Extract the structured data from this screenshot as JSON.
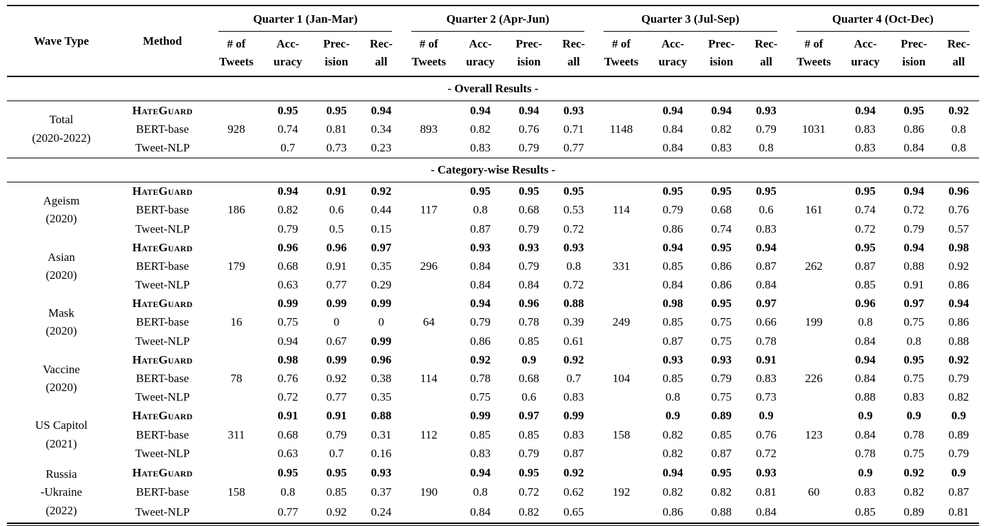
{
  "colors": {
    "background": "#ffffff",
    "text": "#000000",
    "rule": "#000000"
  },
  "table": {
    "header": {
      "wave_type": "Wave Type",
      "method": "Method",
      "quarters": [
        {
          "label": "Quarter 1 (Jan-Mar)"
        },
        {
          "label": "Quarter 2 (Apr-Jun)"
        },
        {
          "label": "Quarter 3 (Jul-Sep)"
        },
        {
          "label": "Quarter 4 (Oct-Dec)"
        }
      ],
      "metrics": [
        {
          "line1": "# of",
          "line2": "Tweets"
        },
        {
          "line1": "Acc-",
          "line2": "uracy"
        },
        {
          "line1": "Prec-",
          "line2": "ision"
        },
        {
          "line1": "Rec-",
          "line2": "all"
        }
      ]
    },
    "sections": [
      {
        "title": "- Overall Results -",
        "groups": [
          {
            "wave": [
              "Total",
              "(2020-2022)"
            ],
            "rows": [
              {
                "method": "HateGuard",
                "hateguard": true,
                "bold": true,
                "q": [
                  [
                    "",
                    "0.95",
                    "0.95",
                    "0.94"
                  ],
                  [
                    "",
                    "0.94",
                    "0.94",
                    "0.93"
                  ],
                  [
                    "",
                    "0.94",
                    "0.94",
                    "0.93"
                  ],
                  [
                    "",
                    "0.94",
                    "0.95",
                    "0.92"
                  ]
                ]
              },
              {
                "method": "BERT-base",
                "hateguard": false,
                "bold": false,
                "q": [
                  [
                    "928",
                    "0.74",
                    "0.81",
                    "0.34"
                  ],
                  [
                    "893",
                    "0.82",
                    "0.76",
                    "0.71"
                  ],
                  [
                    "1148",
                    "0.84",
                    "0.82",
                    "0.79"
                  ],
                  [
                    "1031",
                    "0.83",
                    "0.86",
                    "0.8"
                  ]
                ]
              },
              {
                "method": "Tweet-NLP",
                "hateguard": false,
                "bold": false,
                "q": [
                  [
                    "",
                    "0.7",
                    "0.73",
                    "0.23"
                  ],
                  [
                    "",
                    "0.83",
                    "0.79",
                    "0.77"
                  ],
                  [
                    "",
                    "0.84",
                    "0.83",
                    "0.8"
                  ],
                  [
                    "",
                    "0.83",
                    "0.84",
                    "0.8"
                  ]
                ]
              }
            ]
          }
        ]
      },
      {
        "title": "- Category-wise Results -",
        "groups": [
          {
            "wave": [
              "Ageism",
              "(2020)"
            ],
            "rows": [
              {
                "method": "HateGuard",
                "hateguard": true,
                "bold": true,
                "q": [
                  [
                    "",
                    "0.94",
                    "0.91",
                    "0.92"
                  ],
                  [
                    "",
                    "0.95",
                    "0.95",
                    "0.95"
                  ],
                  [
                    "",
                    "0.95",
                    "0.95",
                    "0.95"
                  ],
                  [
                    "",
                    "0.95",
                    "0.94",
                    "0.96"
                  ]
                ]
              },
              {
                "method": "BERT-base",
                "hateguard": false,
                "bold": false,
                "q": [
                  [
                    "186",
                    "0.82",
                    "0.6",
                    "0.44"
                  ],
                  [
                    "117",
                    "0.8",
                    "0.68",
                    "0.53"
                  ],
                  [
                    "114",
                    "0.79",
                    "0.68",
                    "0.6"
                  ],
                  [
                    "161",
                    "0.74",
                    "0.72",
                    "0.76"
                  ]
                ]
              },
              {
                "method": "Tweet-NLP",
                "hateguard": false,
                "bold": false,
                "q": [
                  [
                    "",
                    "0.79",
                    "0.5",
                    "0.15"
                  ],
                  [
                    "",
                    "0.87",
                    "0.79",
                    "0.72"
                  ],
                  [
                    "",
                    "0.86",
                    "0.74",
                    "0.83"
                  ],
                  [
                    "",
                    "0.72",
                    "0.79",
                    "0.57"
                  ]
                ]
              }
            ]
          },
          {
            "wave": [
              "Asian",
              "(2020)"
            ],
            "rows": [
              {
                "method": "HateGuard",
                "hateguard": true,
                "bold": true,
                "q": [
                  [
                    "",
                    "0.96",
                    "0.96",
                    "0.97"
                  ],
                  [
                    "",
                    "0.93",
                    "0.93",
                    "0.93"
                  ],
                  [
                    "",
                    "0.94",
                    "0.95",
                    "0.94"
                  ],
                  [
                    "",
                    "0.95",
                    "0.94",
                    "0.98"
                  ]
                ]
              },
              {
                "method": "BERT-base",
                "hateguard": false,
                "bold": false,
                "q": [
                  [
                    "179",
                    "0.68",
                    "0.91",
                    "0.35"
                  ],
                  [
                    "296",
                    "0.84",
                    "0.79",
                    "0.8"
                  ],
                  [
                    "331",
                    "0.85",
                    "0.86",
                    "0.87"
                  ],
                  [
                    "262",
                    "0.87",
                    "0.88",
                    "0.92"
                  ]
                ]
              },
              {
                "method": "Tweet-NLP",
                "hateguard": false,
                "bold": false,
                "q": [
                  [
                    "",
                    "0.63",
                    "0.77",
                    "0.29"
                  ],
                  [
                    "",
                    "0.84",
                    "0.84",
                    "0.72"
                  ],
                  [
                    "",
                    "0.84",
                    "0.86",
                    "0.84"
                  ],
                  [
                    "",
                    "0.85",
                    "0.91",
                    "0.86"
                  ]
                ]
              }
            ]
          },
          {
            "wave": [
              "Mask",
              "(2020)"
            ],
            "rows": [
              {
                "method": "HateGuard",
                "hateguard": true,
                "bold": true,
                "q": [
                  [
                    "",
                    "0.99",
                    "0.99",
                    "0.99"
                  ],
                  [
                    "",
                    "0.94",
                    "0.96",
                    "0.88"
                  ],
                  [
                    "",
                    "0.98",
                    "0.95",
                    "0.97"
                  ],
                  [
                    "",
                    "0.96",
                    "0.97",
                    "0.94"
                  ]
                ]
              },
              {
                "method": "BERT-base",
                "hateguard": false,
                "bold": false,
                "q": [
                  [
                    "16",
                    "0.75",
                    "0",
                    "0"
                  ],
                  [
                    "64",
                    "0.79",
                    "0.78",
                    "0.39"
                  ],
                  [
                    "249",
                    "0.85",
                    "0.75",
                    "0.66"
                  ],
                  [
                    "199",
                    "0.8",
                    "0.75",
                    "0.86"
                  ]
                ]
              },
              {
                "method": "Tweet-NLP",
                "hateguard": false,
                "bold": false,
                "bold_cells": [
                  [
                    0,
                    3
                  ]
                ],
                "q": [
                  [
                    "",
                    "0.94",
                    "0.67",
                    "0.99"
                  ],
                  [
                    "",
                    "0.86",
                    "0.85",
                    "0.61"
                  ],
                  [
                    "",
                    "0.87",
                    "0.75",
                    "0.78"
                  ],
                  [
                    "",
                    "0.84",
                    "0.8",
                    "0.88"
                  ]
                ]
              }
            ]
          },
          {
            "wave": [
              "Vaccine",
              "(2020)"
            ],
            "rows": [
              {
                "method": "HateGuard",
                "hateguard": true,
                "bold": true,
                "q": [
                  [
                    "",
                    "0.98",
                    "0.99",
                    "0.96"
                  ],
                  [
                    "",
                    "0.92",
                    "0.9",
                    "0.92"
                  ],
                  [
                    "",
                    "0.93",
                    "0.93",
                    "0.91"
                  ],
                  [
                    "",
                    "0.94",
                    "0.95",
                    "0.92"
                  ]
                ]
              },
              {
                "method": "BERT-base",
                "hateguard": false,
                "bold": false,
                "q": [
                  [
                    "78",
                    "0.76",
                    "0.92",
                    "0.38"
                  ],
                  [
                    "114",
                    "0.78",
                    "0.68",
                    "0.7"
                  ],
                  [
                    "104",
                    "0.85",
                    "0.79",
                    "0.83"
                  ],
                  [
                    "226",
                    "0.84",
                    "0.75",
                    "0.79"
                  ]
                ]
              },
              {
                "method": "Tweet-NLP",
                "hateguard": false,
                "bold": false,
                "q": [
                  [
                    "",
                    "0.72",
                    "0.77",
                    "0.35"
                  ],
                  [
                    "",
                    "0.75",
                    "0.6",
                    "0.83"
                  ],
                  [
                    "",
                    "0.8",
                    "0.75",
                    "0.73"
                  ],
                  [
                    "",
                    "0.88",
                    "0.83",
                    "0.82"
                  ]
                ]
              }
            ]
          },
          {
            "wave": [
              "US Capitol",
              "(2021)"
            ],
            "rows": [
              {
                "method": "HateGuard",
                "hateguard": true,
                "bold": true,
                "q": [
                  [
                    "",
                    "0.91",
                    "0.91",
                    "0.88"
                  ],
                  [
                    "",
                    "0.99",
                    "0.97",
                    "0.99"
                  ],
                  [
                    "",
                    "0.9",
                    "0.89",
                    "0.9"
                  ],
                  [
                    "",
                    "0.9",
                    "0.9",
                    "0.9"
                  ]
                ]
              },
              {
                "method": "BERT-base",
                "hateguard": false,
                "bold": false,
                "q": [
                  [
                    "311",
                    "0.68",
                    "0.79",
                    "0.31"
                  ],
                  [
                    "112",
                    "0.85",
                    "0.85",
                    "0.83"
                  ],
                  [
                    "158",
                    "0.82",
                    "0.85",
                    "0.76"
                  ],
                  [
                    "123",
                    "0.84",
                    "0.78",
                    "0.89"
                  ]
                ]
              },
              {
                "method": "Tweet-NLP",
                "hateguard": false,
                "bold": false,
                "q": [
                  [
                    "",
                    "0.63",
                    "0.7",
                    "0.16"
                  ],
                  [
                    "",
                    "0.83",
                    "0.79",
                    "0.87"
                  ],
                  [
                    "",
                    "0.82",
                    "0.87",
                    "0.72"
                  ],
                  [
                    "",
                    "0.78",
                    "0.75",
                    "0.79"
                  ]
                ]
              }
            ]
          },
          {
            "wave": [
              "Russia",
              "-Ukraine",
              "(2022)"
            ],
            "rows": [
              {
                "method": "HateGuard",
                "hateguard": true,
                "bold": true,
                "q": [
                  [
                    "",
                    "0.95",
                    "0.95",
                    "0.93"
                  ],
                  [
                    "",
                    "0.94",
                    "0.95",
                    "0.92"
                  ],
                  [
                    "",
                    "0.94",
                    "0.95",
                    "0.93"
                  ],
                  [
                    "",
                    "0.9",
                    "0.92",
                    "0.9"
                  ]
                ]
              },
              {
                "method": "BERT-base",
                "hateguard": false,
                "bold": false,
                "q": [
                  [
                    "158",
                    "0.8",
                    "0.85",
                    "0.37"
                  ],
                  [
                    "190",
                    "0.8",
                    "0.72",
                    "0.62"
                  ],
                  [
                    "192",
                    "0.82",
                    "0.82",
                    "0.81"
                  ],
                  [
                    "60",
                    "0.83",
                    "0.82",
                    "0.87"
                  ]
                ]
              },
              {
                "method": "Tweet-NLP",
                "hateguard": false,
                "bold": false,
                "q": [
                  [
                    "",
                    "0.77",
                    "0.92",
                    "0.24"
                  ],
                  [
                    "",
                    "0.84",
                    "0.82",
                    "0.65"
                  ],
                  [
                    "",
                    "0.86",
                    "0.88",
                    "0.84"
                  ],
                  [
                    "",
                    "0.85",
                    "0.89",
                    "0.81"
                  ]
                ]
              }
            ]
          }
        ]
      }
    ]
  }
}
